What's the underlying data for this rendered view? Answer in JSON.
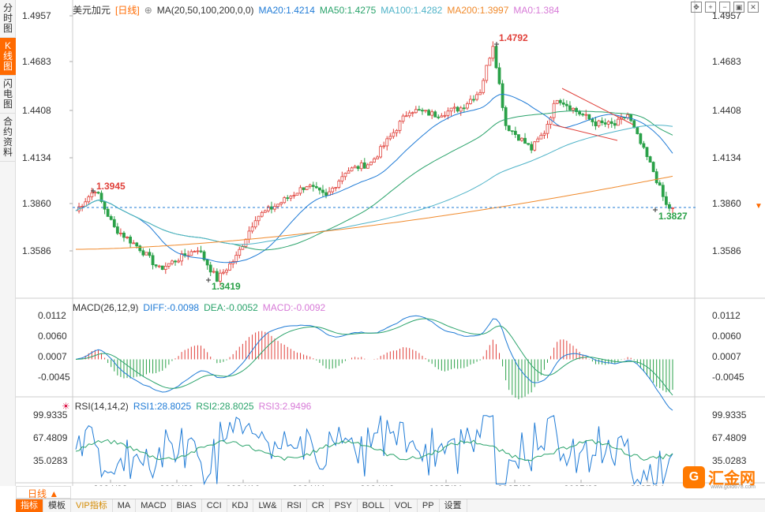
{
  "sidebar": {
    "tabs": [
      "分时图",
      "K线图",
      "闪电图",
      "合约资料"
    ],
    "active": 1
  },
  "main_legend": {
    "symbol": "美元加元",
    "period": "[日线]",
    "ma_label": "MA(20,50,100,200,0,0)",
    "ma20": "MA20:1.4214",
    "ma50": "MA50:1.4275",
    "ma100": "MA100:1.4282",
    "ma200": "MA200:1.3997",
    "ma0": "MA0:1.384"
  },
  "macd_legend": {
    "label": "MACD(26,12,9)",
    "diff": "DIFF:-0.0098",
    "dea": "DEA:-0.0052",
    "macd": "MACD:-0.0092"
  },
  "rsi_legend": {
    "label": "RSI(14,14,2)",
    "rsi1": "RSI1:28.8025",
    "rsi2": "RSI2:28.8025",
    "rsi3": "RSI3:2.9496"
  },
  "price_axis": [
    "1.4957",
    "1.4683",
    "1.4408",
    "1.4134",
    "1.3860",
    "1.3586"
  ],
  "current_price": "1.3860",
  "macd_axis": [
    "0.0112",
    "0.0060",
    "0.0007",
    "-0.0045"
  ],
  "rsi_axis": [
    "99.9335",
    "67.4809",
    "35.0283"
  ],
  "annotations": {
    "high_label": "1.4792",
    "early_high": "1.3945",
    "low_label": "1.3419",
    "last_low": "1.3827"
  },
  "x_dates": [
    "2024/08",
    "2024/09",
    "2024/10",
    "2024/11",
    "2024/12",
    "2025/01",
    "2025/02",
    "2025/03",
    "2025/04"
  ],
  "period_button": "日线 ▲",
  "bottom_tabs": [
    "指标",
    "模板",
    "VIP指标",
    "MA",
    "MACD",
    "BIAS",
    "CCI",
    "KDJ",
    "LW&",
    "RSI",
    "CR",
    "PSY",
    "BOLL",
    "VOL",
    "PP",
    "设置"
  ],
  "toolbar_icons": [
    "move-icon",
    "zoom-in-icon",
    "zoom-out-icon",
    "fullscreen-icon",
    "close-icon"
  ],
  "logo": {
    "name": "汇金网",
    "url": "www.gold678.com"
  },
  "colors": {
    "up": "#e0403a",
    "down": "#2aa148",
    "ma20": "#1f7bd6",
    "ma50": "#2aa36b",
    "ma100": "#4fb3c8",
    "ma200": "#f08a2c",
    "accent": "#ff6a00"
  },
  "chart_data": {
    "type": "candlestick",
    "markers": {
      "high": 1.4792,
      "low": 1.3419,
      "early_high": 1.3945,
      "last_low": 1.3827
    }
  }
}
